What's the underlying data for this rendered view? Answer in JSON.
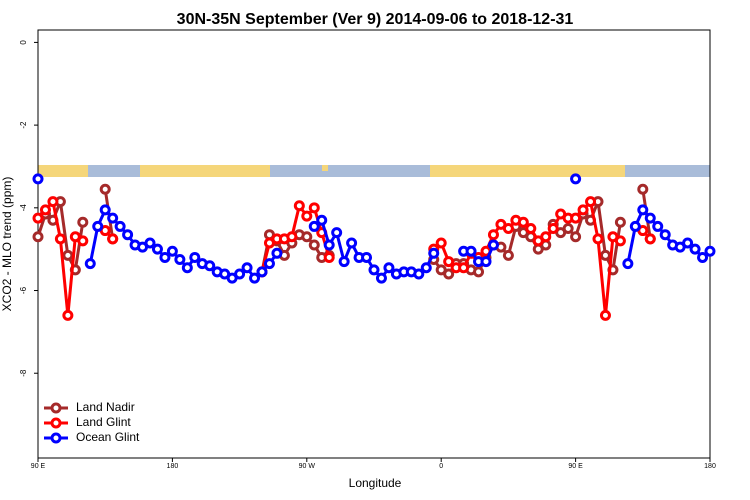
{
  "chart_data": {
    "type": "line",
    "title": "30N-35N September (Ver 9)   2014-09-06 to 2018-12-31",
    "x_label": "Longitude",
    "y_label": "XCO2 - MLO trend (ppm)",
    "x": [
      90,
      95,
      100,
      105,
      110,
      115,
      120,
      125,
      130,
      135,
      140,
      145,
      150,
      155,
      160,
      165,
      170,
      175,
      180,
      185,
      190,
      195,
      200,
      205,
      210,
      215,
      220,
      225,
      230,
      235,
      240,
      245,
      250,
      255,
      260,
      265,
      270,
      275,
      280,
      285,
      290,
      295,
      300,
      305,
      310,
      315,
      320,
      325,
      330,
      335,
      340,
      345,
      350,
      355,
      360,
      365,
      370,
      375,
      380,
      385,
      390,
      395,
      400,
      405,
      410,
      415,
      420,
      425,
      430,
      435,
      440,
      445,
      450,
      455,
      460,
      465,
      470,
      475,
      480,
      485,
      490,
      495,
      500,
      505,
      510,
      515,
      520,
      525,
      530,
      535,
      540
    ],
    "series": [
      {
        "name": "Land Nadir",
        "color": "#a52a2a",
        "values": [
          -4.7,
          -4.15,
          -4.3,
          -3.85,
          -5.15,
          -5.5,
          -4.35,
          null,
          null,
          -3.55,
          -4.75,
          null,
          null,
          null,
          null,
          null,
          null,
          null,
          null,
          null,
          null,
          null,
          null,
          null,
          null,
          null,
          null,
          null,
          null,
          null,
          -5.55,
          -4.65,
          -4.8,
          -5.15,
          -4.85,
          -4.65,
          -4.7,
          -4.9,
          -5.2,
          -5.15,
          null,
          null,
          null,
          null,
          null,
          null,
          null,
          null,
          null,
          null,
          null,
          null,
          null,
          -5.25,
          -5.5,
          -5.6,
          -5.35,
          -5.35,
          -5.5,
          -5.55,
          -5.2,
          -4.9,
          -4.95,
          -5.15,
          -4.45,
          -4.6,
          -4.7,
          -5.0,
          -4.9,
          -4.4,
          -4.6,
          -4.5,
          -4.7,
          -4.15,
          -4.3,
          -3.85,
          -5.15,
          -5.5,
          -4.35,
          null,
          null,
          -3.55,
          -4.75,
          null,
          null,
          null,
          null,
          null,
          null,
          null,
          null
        ]
      },
      {
        "name": "Land Glint",
        "color": "#ff0000",
        "values": [
          -4.25,
          -4.05,
          -3.85,
          -4.75,
          -6.6,
          -4.7,
          -4.8,
          null,
          null,
          -4.55,
          -4.75,
          null,
          null,
          null,
          null,
          null,
          null,
          null,
          null,
          null,
          null,
          null,
          null,
          null,
          null,
          null,
          null,
          null,
          null,
          null,
          -5.55,
          -4.85,
          -4.75,
          -4.75,
          -4.7,
          -3.95,
          -4.2,
          -4.0,
          -4.6,
          -5.2,
          null,
          null,
          null,
          null,
          null,
          null,
          null,
          null,
          null,
          null,
          null,
          null,
          null,
          -5.0,
          -4.85,
          -5.3,
          -5.45,
          -5.45,
          -5.1,
          -5.2,
          -5.05,
          -4.65,
          -4.4,
          -4.5,
          -4.3,
          -4.35,
          -4.5,
          -4.8,
          -4.7,
          -4.5,
          -4.15,
          -4.25,
          -4.25,
          -4.05,
          -3.85,
          -4.75,
          -6.6,
          -4.7,
          -4.8,
          null,
          null,
          -4.55,
          -4.75,
          null,
          null,
          null,
          null,
          null,
          null,
          null,
          null
        ]
      },
      {
        "name": "Ocean Glint",
        "color": "#0000ff",
        "values": [
          -3.3,
          null,
          null,
          null,
          null,
          null,
          null,
          -5.35,
          -4.45,
          -4.05,
          -4.25,
          -4.45,
          -4.65,
          -4.9,
          -4.95,
          -4.85,
          -5.0,
          -5.2,
          -5.05,
          -5.25,
          -5.45,
          -5.2,
          -5.35,
          -5.4,
          -5.55,
          -5.6,
          -5.7,
          -5.6,
          -5.45,
          -5.7,
          -5.55,
          -5.35,
          -5.1,
          null,
          null,
          null,
          null,
          -4.45,
          -4.3,
          -4.9,
          -4.6,
          -5.3,
          -4.85,
          -5.2,
          -5.2,
          -5.5,
          -5.7,
          -5.45,
          -5.6,
          -5.55,
          -5.55,
          -5.6,
          -5.45,
          -5.1,
          null,
          null,
          null,
          -5.05,
          -5.05,
          -5.3,
          -5.3,
          -4.9,
          null,
          null,
          null,
          null,
          null,
          null,
          null,
          null,
          null,
          null,
          -3.3,
          null,
          null,
          null,
          null,
          null,
          null,
          -5.35,
          -4.45,
          -4.05,
          -4.25,
          -4.45,
          -4.65,
          -4.9,
          -4.95,
          -4.85,
          -5.0,
          -5.2,
          -5.05
        ]
      }
    ],
    "xlim": [
      90,
      540
    ],
    "xticks": [
      {
        "value": 90,
        "label": "90 E"
      },
      {
        "value": 180,
        "label": "180"
      },
      {
        "value": 270,
        "label": "90 W"
      },
      {
        "value": 360,
        "label": "0"
      },
      {
        "value": 450,
        "label": "90 E"
      },
      {
        "value": 540,
        "label": "180"
      }
    ],
    "ylim": [
      -10.05,
      0.3
    ],
    "yticks": [
      0,
      -2,
      -4,
      -6,
      -8
    ],
    "legend": "bottom-left",
    "grid": false
  }
}
